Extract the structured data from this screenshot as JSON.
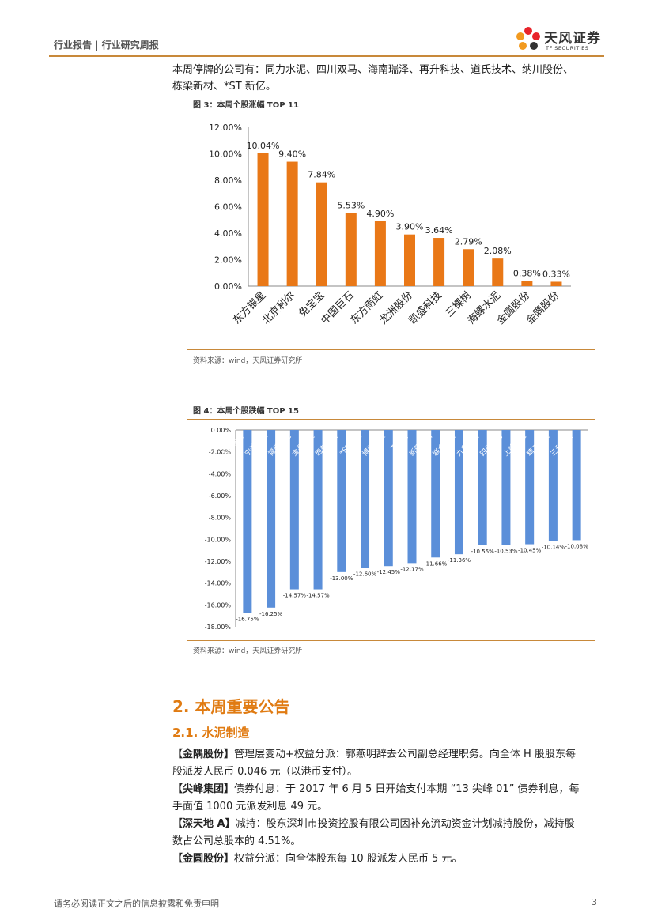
{
  "header": {
    "title": "行业报告 | 行业研究周报",
    "logo_cn": "天风证券",
    "logo_en": "TF SECURITIES"
  },
  "intro": {
    "line1": "本周停牌的公司有：同力水泥、四川双马、海南瑞泽、再升科技、道氏技术、纳川股份、",
    "line2": "栋梁新材、*ST 新亿。"
  },
  "fig3": {
    "title": "图 3：本周个股涨幅 TOP 11",
    "source": "资料来源：wind，天风证券研究所"
  },
  "fig4": {
    "title": "图 4：本周个股跌幅 TOP 15",
    "source": "资料来源：wind，天风证券研究所"
  },
  "section": {
    "h2": "2. 本周重要公告",
    "h3": "2.1. 水泥制造"
  },
  "announcements": [
    {
      "name": "【金隅股份】",
      "text": "管理层变动+权益分派：郭燕明辞去公司副总经理职务。向全体 H 股股东每",
      "text2": "股派发人民币 0.046 元（以港币支付）。"
    },
    {
      "name": "【尖峰集团】",
      "text": "债券付息：于 2017 年 6 月 5 日开始支付本期 “13 尖峰 01” 债券利息，每",
      "text2": "手面值 1000 元派发利息 49 元。"
    },
    {
      "name": "【深天地 A】",
      "text": "减持：股东深圳市投资控股有限公司因补充流动资金计划减持股份，减持股",
      "text2": "数占公司总股本的 4.51%。"
    },
    {
      "name": "【金圆股份】",
      "text": "权益分派：向全体股东每 10 股派发人民币 5 元。",
      "text2": ""
    }
  ],
  "footer": {
    "text": "请务必阅读正文之后的信息披露和免责申明",
    "page": "3"
  },
  "colors": {
    "accent": "#e07b12",
    "bar_up": "#e97817",
    "bar_down": "#5b8fd9",
    "rule": "#c8893a"
  },
  "chart_data": [
    {
      "type": "bar",
      "categories": [
        "东方银星",
        "北京利尔",
        "兔宝宝",
        "中国巨石",
        "东方雨虹",
        "龙洲股份",
        "凯盛科技",
        "三棵树",
        "海螺水泥",
        "金圆股份",
        "金隅股份"
      ],
      "values": [
        10.04,
        9.4,
        7.84,
        5.53,
        4.9,
        3.9,
        3.64,
        2.79,
        2.08,
        0.38,
        0.33
      ],
      "value_labels": [
        "10.04%",
        "9.40%",
        "7.84%",
        "5.53%",
        "4.90%",
        "3.90%",
        "3.64%",
        "2.79%",
        "2.08%",
        "0.38%",
        "0.33%"
      ],
      "y_ticks": [
        "0.00%",
        "2.00%",
        "4.00%",
        "6.00%",
        "8.00%",
        "10.00%",
        "12.00%"
      ],
      "ylim": [
        0,
        12
      ],
      "grid": false
    },
    {
      "type": "bar",
      "categories": [
        "天山股份",
        "宁波富达",
        "福建水泥",
        "金晶科技",
        "西部建设",
        "*ST狮头",
        "博闻科技",
        "万年青",
        "新疆天山",
        "联合科技",
        "九鼎新材",
        "四川双马",
        "上峰水泥",
        "精工科技",
        "三和管桩"
      ],
      "values": [
        -16.75,
        -16.25,
        -14.57,
        -14.57,
        -13.0,
        -12.6,
        -12.45,
        -12.17,
        -11.66,
        -11.36,
        -10.55,
        -10.53,
        -10.45,
        -10.14,
        -10.08
      ],
      "value_labels": [
        "-16.75%",
        "-16.25%",
        "-14.57%",
        "-14.57%",
        "-13.00%",
        "-12.60%",
        "-12.45%",
        "-12.17%",
        "-11.66%",
        "-11.36%",
        "-10.55%",
        "-10.53%",
        "-10.45%",
        "-10.14%",
        "-10.08%"
      ],
      "y_ticks": [
        "0.00%",
        "-2.00%",
        "-4.00%",
        "-6.00%",
        "-8.00%",
        "-10.00%",
        "-12.00%",
        "-14.00%",
        "-16.00%",
        "-18.00%"
      ],
      "ylim": [
        -18,
        0
      ],
      "grid": false
    }
  ]
}
